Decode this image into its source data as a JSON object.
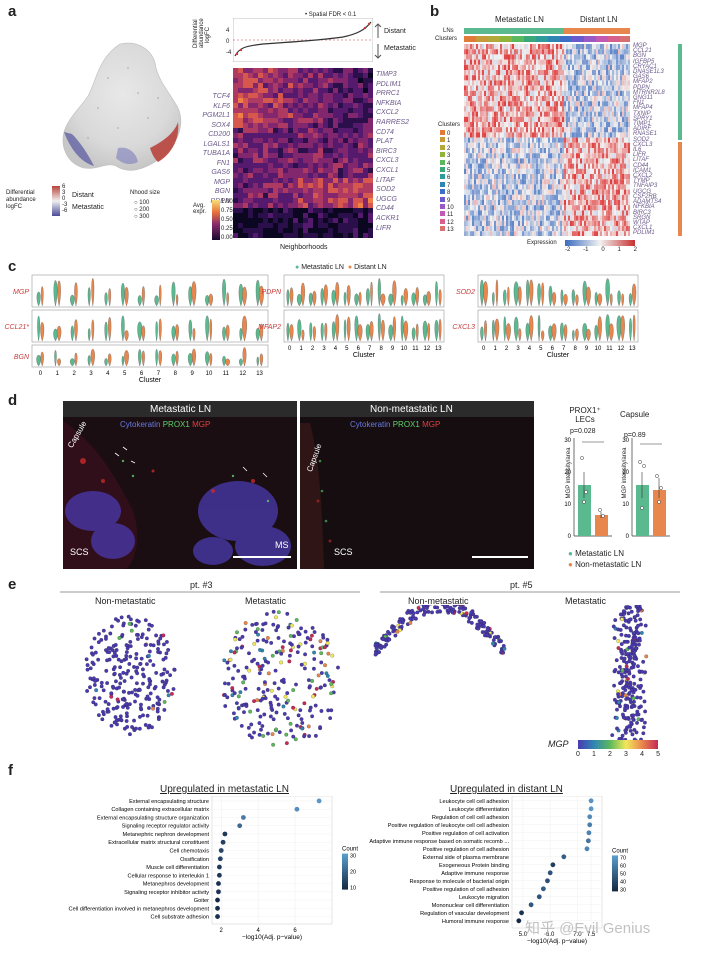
{
  "panels": {
    "a": {
      "letter": "a",
      "da_ylabel": "Differential abundance logFC",
      "da_yticks": [
        "4",
        "0",
        "-4"
      ],
      "spatial_fdr": "• Spatial FDR < 0.1",
      "distant": "Distant",
      "metastatic": "Metastatic",
      "legend_da_title": "Differential abundance logFC",
      "legend_da_ticks": [
        "6",
        "3",
        "0",
        "-3",
        "-6"
      ],
      "legend_distant": "Distant",
      "legend_metastatic": "Metastatic",
      "nhood_title": "Nhood size",
      "nhood_sizes": [
        "100",
        "200",
        "300"
      ],
      "avg_expr_title": "Avg. expr.",
      "avg_expr_ticks": [
        "1.00",
        "0.75",
        "0.50",
        "0.25",
        "0.00"
      ],
      "xlabel": "Neighborhoods",
      "genes_left": [
        "TCF4",
        "KLF6",
        "PGM2L1",
        "SOX4",
        "CD200",
        "LGALS1",
        "TUBA1A",
        "FN1",
        "GAS6",
        "MGP",
        "BGN",
        "PDPN"
      ],
      "genes_right": [
        "TIMP3",
        "PDLIM1",
        "PRRC1",
        "NFKBIA",
        "CXCL2",
        "RARRES2",
        "CD74",
        "PLAT",
        "BIRC3",
        "CXCL3",
        "CXCL1",
        "LITAF",
        "SOD2",
        "UGCG",
        "CD44",
        "ACKR1",
        "LIFR"
      ]
    },
    "b": {
      "letter": "b",
      "metastatic_ln": "Metastatic LN",
      "distant_ln": "Distant LN",
      "row_lns": "LNs",
      "row_clusters": "Clusters",
      "clusters_title": "Clusters",
      "clusters": [
        "0",
        "1",
        "2",
        "3",
        "4",
        "5",
        "6",
        "7",
        "8",
        "9",
        "10",
        "11",
        "12",
        "13"
      ],
      "cluster_colors": [
        "#e07b39",
        "#c79a3b",
        "#b5a83a",
        "#8fb33b",
        "#5cb85c",
        "#3aa879",
        "#2f9c9c",
        "#2f86b5",
        "#3f6ec7",
        "#6a5acd",
        "#9a5ac6",
        "#c15ab0",
        "#d65f8e",
        "#d97070"
      ],
      "genes": [
        "MGP",
        "CCL21",
        "BGN",
        "IGFBP5",
        "CRYAC1",
        "DNASE1L3",
        "GAS6",
        "MFAP2",
        "PDPN",
        "MTRNR2L8",
        "GNG11",
        "FN1",
        "MFAP4",
        "TXNIP",
        "SPRY1",
        "TIMP1",
        "ADIRF",
        "RNASE1",
        "SOD2",
        "CXCL3",
        "IL6",
        "LIFR",
        "LITAF",
        "CD44",
        "ICAM1",
        "CXCL2",
        "TYMP",
        "TNFAIP3",
        "UGCG",
        "CSF2RB",
        "ADAMTS4",
        "NFKBIA",
        "BIRC3",
        "SRGN",
        "WTAP",
        "CXCL1",
        "PDLIM1"
      ],
      "expression_title": "Expression",
      "expression_ticks": [
        "-2",
        "-1",
        "0",
        "1",
        "2"
      ]
    },
    "c": {
      "letter": "c",
      "legend_metastatic": "Metastatic LN",
      "legend_distant": "Distant LN",
      "genes_col1": [
        "MGP",
        "CCL21*",
        "BGN"
      ],
      "genes_col2": [
        "PDPN",
        "MFAP2"
      ],
      "genes_col3": [
        "SOD2",
        "CXCL3"
      ],
      "xticks": [
        "0",
        "1",
        "2",
        "3",
        "4",
        "5",
        "6",
        "7",
        "8",
        "9",
        "10",
        "11",
        "12",
        "13"
      ],
      "xlabel": "Cluster"
    },
    "d": {
      "letter": "d",
      "left_title": "Metastatic LN",
      "right_title": "Non-metastatic LN",
      "stain_cytokeratin": "Cytokeratin",
      "stain_prox1": "PROX1",
      "stain_mgp": "MGP",
      "label_capsule": "Capsule",
      "label_scs": "SCS",
      "label_ms": "MS",
      "bar1_title": "PROX1⁺ LECs",
      "bar2_title": "Capsule",
      "bar1_p": "p=0.028",
      "bar2_p": "p=0.89",
      "ylabel": "MGP intensity/area",
      "yticks": [
        "0",
        "10",
        "20",
        "30"
      ],
      "legend_metastatic": "Metastatic LN",
      "legend_non": "Non-metastatic LN"
    },
    "e": {
      "letter": "e",
      "pt3": "pt. #3",
      "pt5": "pt. #5",
      "non_metastatic": "Non-metastatic",
      "metastatic": "Metastatic",
      "colorbar_title": "MGP",
      "colorbar_ticks": [
        "0",
        "1",
        "2",
        "3",
        "4",
        "5"
      ]
    },
    "f": {
      "letter": "f",
      "watermark": "知乎 @Evil Genius"
    }
  },
  "chart_data": [
    {
      "type": "scatter",
      "title": "Upregulated in metastatic LN",
      "xlabel": "−log10(Adj. p−value)",
      "xticks": [
        "2",
        "4",
        "6"
      ],
      "xlim": [
        1.5,
        8
      ],
      "legend_title": "Count",
      "legend_ticks": [
        "30",
        "20",
        "10"
      ],
      "categories": [
        "External encapsulating structure",
        "Collagen containing extracellular matrix",
        "External encapsulating structure organization",
        "Signaling receptor regulator activity",
        "Metanephric nephron development",
        "Extracellular matrix structural constituent",
        "Cell chemotaxis",
        "Ossification",
        "Muscle cell differentiation",
        "Cellular response to interleukin 1",
        "Metanephros development",
        "Signaling receptor inhibitor activity",
        "Goiter",
        "Cell differentiation involved in metanephros development",
        "Cell substrate adhesion"
      ],
      "values": [
        7.3,
        6.1,
        3.2,
        3.0,
        2.2,
        2.1,
        2.0,
        1.95,
        1.9,
        1.9,
        1.85,
        1.85,
        1.8,
        1.8,
        1.8
      ],
      "counts": [
        35,
        33,
        28,
        24,
        12,
        14,
        15,
        14,
        12,
        12,
        10,
        11,
        8,
        9,
        10
      ]
    },
    {
      "type": "scatter",
      "title": "Upregulated in distant LN",
      "xlabel": "−log10(Adj. p−value)",
      "xticks": [
        "5.0",
        "6.0",
        "7.0",
        "7.5"
      ],
      "xlim": [
        4.6,
        7.9
      ],
      "legend_title": "Count",
      "legend_ticks": [
        "70",
        "60",
        "50",
        "40",
        "30"
      ],
      "categories": [
        "Leukocyte cell cell adhesion",
        "Leukocyte differentiation",
        "Regulation of cell cell adhesion",
        "Positive regulation of leukocyte cell cell adhesion",
        "Positive regulation of cell activation",
        "Adaptive immune response based on somatic recomb ...",
        "Positive regulation of cell adhesion",
        "External side of plasma membrane",
        "Exogeneous Protein binding",
        "Adaptive immune response",
        "Response to molecule of bacterial origin",
        "Positive regulation of cell adhesion",
        "Leukocyte migration",
        "Mononuclear cell differentiation",
        "Regulation of vascular development",
        "Humoral immune response"
      ],
      "values": [
        7.5,
        7.5,
        7.45,
        7.45,
        7.42,
        7.4,
        7.35,
        6.5,
        6.1,
        6.0,
        5.9,
        5.75,
        5.6,
        5.3,
        4.95,
        4.85
      ],
      "counts": [
        70,
        72,
        66,
        60,
        62,
        55,
        63,
        45,
        30,
        40,
        38,
        44,
        40,
        42,
        25,
        20
      ]
    }
  ]
}
